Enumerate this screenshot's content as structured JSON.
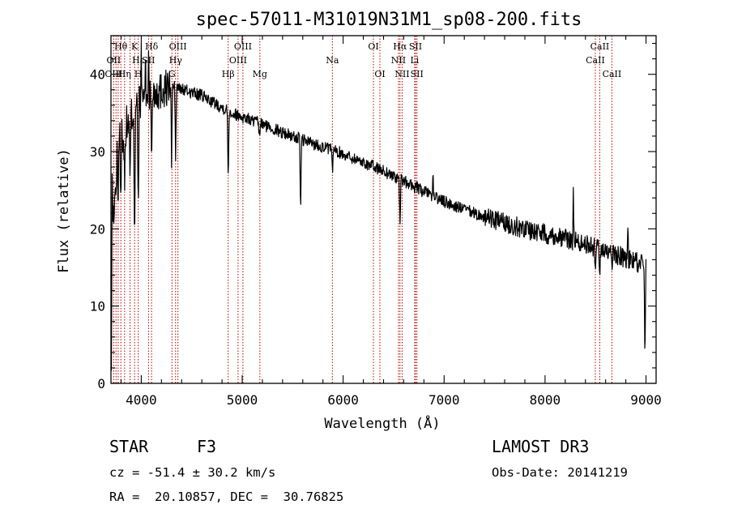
{
  "chart_data": {
    "type": "line",
    "title": "spec-57011-M31019N31M1_sp08-200.fits",
    "xlabel": "Wavelength (Å)",
    "ylabel": "Flux (relative)",
    "xlim": [
      3700,
      9100
    ],
    "ylim": [
      0,
      45
    ],
    "xticks": [
      "4000",
      "5000",
      "6000",
      "7000",
      "8000",
      "9000"
    ],
    "yticks": [
      "0",
      "10",
      "20",
      "30",
      "40"
    ],
    "line_color": "#b00000",
    "spectrum_color": "#000000",
    "continuum": [
      [
        3700,
        30
      ],
      [
        3800,
        32
      ],
      [
        4000,
        37
      ],
      [
        4300,
        38.5
      ],
      [
        4600,
        37.2
      ],
      [
        4900,
        35
      ],
      [
        5200,
        33.5
      ],
      [
        5600,
        31.5
      ],
      [
        6000,
        29.7
      ],
      [
        6400,
        27.5
      ],
      [
        6800,
        24.8
      ],
      [
        7000,
        23.5
      ],
      [
        7400,
        21.5
      ],
      [
        7800,
        20
      ],
      [
        8200,
        18.8
      ],
      [
        8600,
        17.2
      ],
      [
        9000,
        15.2
      ]
    ],
    "absorption_features": [
      {
        "w": 3704,
        "depth": 28
      },
      {
        "w": 3722,
        "depth": 12
      },
      {
        "w": 3735,
        "depth": 10
      },
      {
        "w": 3750,
        "depth": 9
      },
      {
        "w": 3771,
        "depth": 9
      },
      {
        "w": 3798,
        "depth": 8
      },
      {
        "w": 3835,
        "depth": 8
      },
      {
        "w": 3889,
        "depth": 9
      },
      {
        "w": 3934,
        "depth": 17
      },
      {
        "w": 3970,
        "depth": 16
      },
      {
        "w": 4102,
        "depth": 9
      },
      {
        "w": 4300,
        "depth": 10
      },
      {
        "w": 4340,
        "depth": 9
      },
      {
        "w": 4861,
        "depth": 9
      },
      {
        "w": 5170,
        "depth": 2
      },
      {
        "w": 5578,
        "depth": 10
      },
      {
        "w": 5893,
        "depth": 3
      },
      {
        "w": 6563,
        "depth": 6
      },
      {
        "w": 8498,
        "depth": 2
      },
      {
        "w": 8542,
        "depth": 5
      },
      {
        "w": 8662,
        "depth": 3
      },
      {
        "w": 8990,
        "depth": 12
      }
    ],
    "emission_spikes": [
      {
        "w": 4000,
        "height": 5
      },
      {
        "w": 4040,
        "height": 4
      },
      {
        "w": 4072,
        "height": 6
      },
      {
        "w": 6890,
        "height": 3
      },
      {
        "w": 8280,
        "height": 6
      },
      {
        "w": 8820,
        "height": 4
      }
    ],
    "spectral_lines": [
      {
        "label": "Hθ",
        "w": 3798,
        "row": 0
      },
      {
        "label": "K",
        "w": 3934,
        "row": 0
      },
      {
        "label": "Hδ",
        "w": 4102,
        "row": 0
      },
      {
        "label": "OIII",
        "w": 4363,
        "row": 0
      },
      {
        "label": "OIII",
        "w": 5007,
        "row": 0
      },
      {
        "label": "OI",
        "w": 6300,
        "row": 0
      },
      {
        "label": "Hα",
        "w": 6563,
        "row": 0
      },
      {
        "label": "SII",
        "w": 6717,
        "row": 0
      },
      {
        "label": "CaII",
        "w": 8542,
        "row": 0
      },
      {
        "label": "OII",
        "w": 3727,
        "row": 1
      },
      {
        "label": "Hε",
        "w": 3970,
        "row": 1
      },
      {
        "label": "SII",
        "w": 4072,
        "row": 1
      },
      {
        "label": "Hγ",
        "w": 4340,
        "row": 1
      },
      {
        "label": "OIII",
        "w": 4959,
        "row": 1
      },
      {
        "label": "Na",
        "w": 5893,
        "row": 1
      },
      {
        "label": "NII",
        "w": 6548,
        "row": 1
      },
      {
        "label": "Li",
        "w": 6708,
        "row": 1
      },
      {
        "label": "CaII",
        "w": 8498,
        "row": 1
      },
      {
        "label": "OIII",
        "w": 3727,
        "row": 2
      },
      {
        "label": "Hη",
        "w": 3835,
        "row": 2
      },
      {
        "label": "H",
        "w": 3970,
        "row": 2
      },
      {
        "label": "G",
        "w": 4304,
        "row": 2
      },
      {
        "label": "Hβ",
        "w": 4861,
        "row": 2
      },
      {
        "label": "Mg",
        "w": 5175,
        "row": 2
      },
      {
        "label": "OI",
        "w": 6364,
        "row": 2
      },
      {
        "label": "NII",
        "w": 6584,
        "row": 2
      },
      {
        "label": "SII",
        "w": 6731,
        "row": 2
      },
      {
        "label": "CaII",
        "w": 8662,
        "row": 2
      }
    ],
    "extra_line_markers": [
      3750,
      3771,
      3889
    ]
  },
  "info": {
    "object_class": "STAR",
    "subclass": "F3",
    "survey": "LAMOST DR3",
    "cz": "cz = -51.4 ± 30.2 km/s",
    "obs_date": "Obs-Date: 20141219",
    "coords": "RA =  20.10857, DEC =  30.76825"
  }
}
